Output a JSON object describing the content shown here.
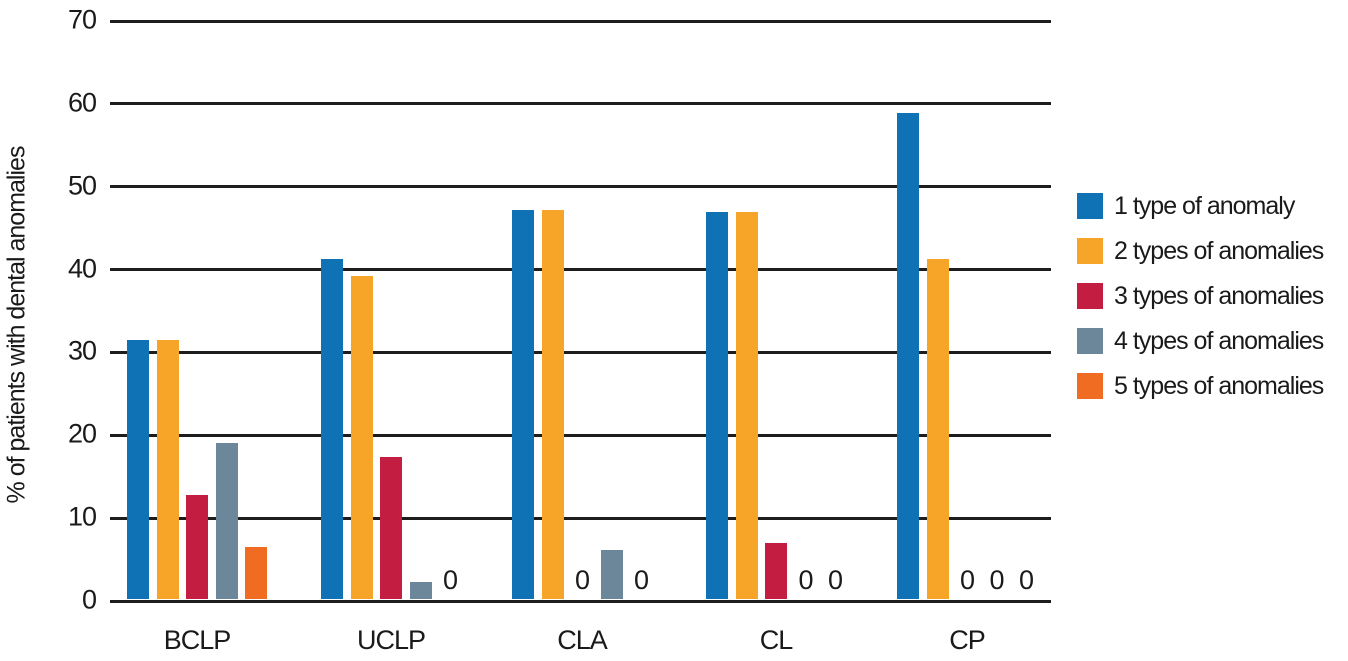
{
  "chart_data": {
    "type": "bar",
    "title": "",
    "xlabel": "",
    "ylabel": "% of patients with dental anomalies",
    "categories": [
      "BCLP",
      "UCLP",
      "CLA",
      "CL",
      "CP"
    ],
    "series": [
      {
        "name": "1 type of anomaly",
        "color": "#0F72B4",
        "values": [
          31.3,
          41,
          47,
          46.7,
          58.7
        ]
      },
      {
        "name": "2 types of anomalies",
        "color": "#F7A529",
        "values": [
          31.3,
          39,
          47,
          46.7,
          41
        ]
      },
      {
        "name": "3 types of anomalies",
        "color": "#C31D41",
        "values": [
          12.5,
          17.1,
          0,
          6.7,
          0
        ]
      },
      {
        "name": "4 types of anomalies",
        "color": "#6C8799",
        "values": [
          18.8,
          2,
          5.9,
          0,
          0
        ]
      },
      {
        "name": "5 types of anomalies",
        "color": "#F16C23",
        "values": [
          6.3,
          0,
          0,
          0,
          0
        ]
      }
    ],
    "ylim": [
      0,
      70
    ],
    "yticks": [
      70,
      60,
      50,
      40,
      30,
      20,
      10,
      0
    ],
    "zero_display": "0",
    "grid": true,
    "legend_position": "right",
    "grid_color": "#1d1d1b",
    "text_color": "#1a1a1a",
    "background_color": "#ffffff"
  }
}
